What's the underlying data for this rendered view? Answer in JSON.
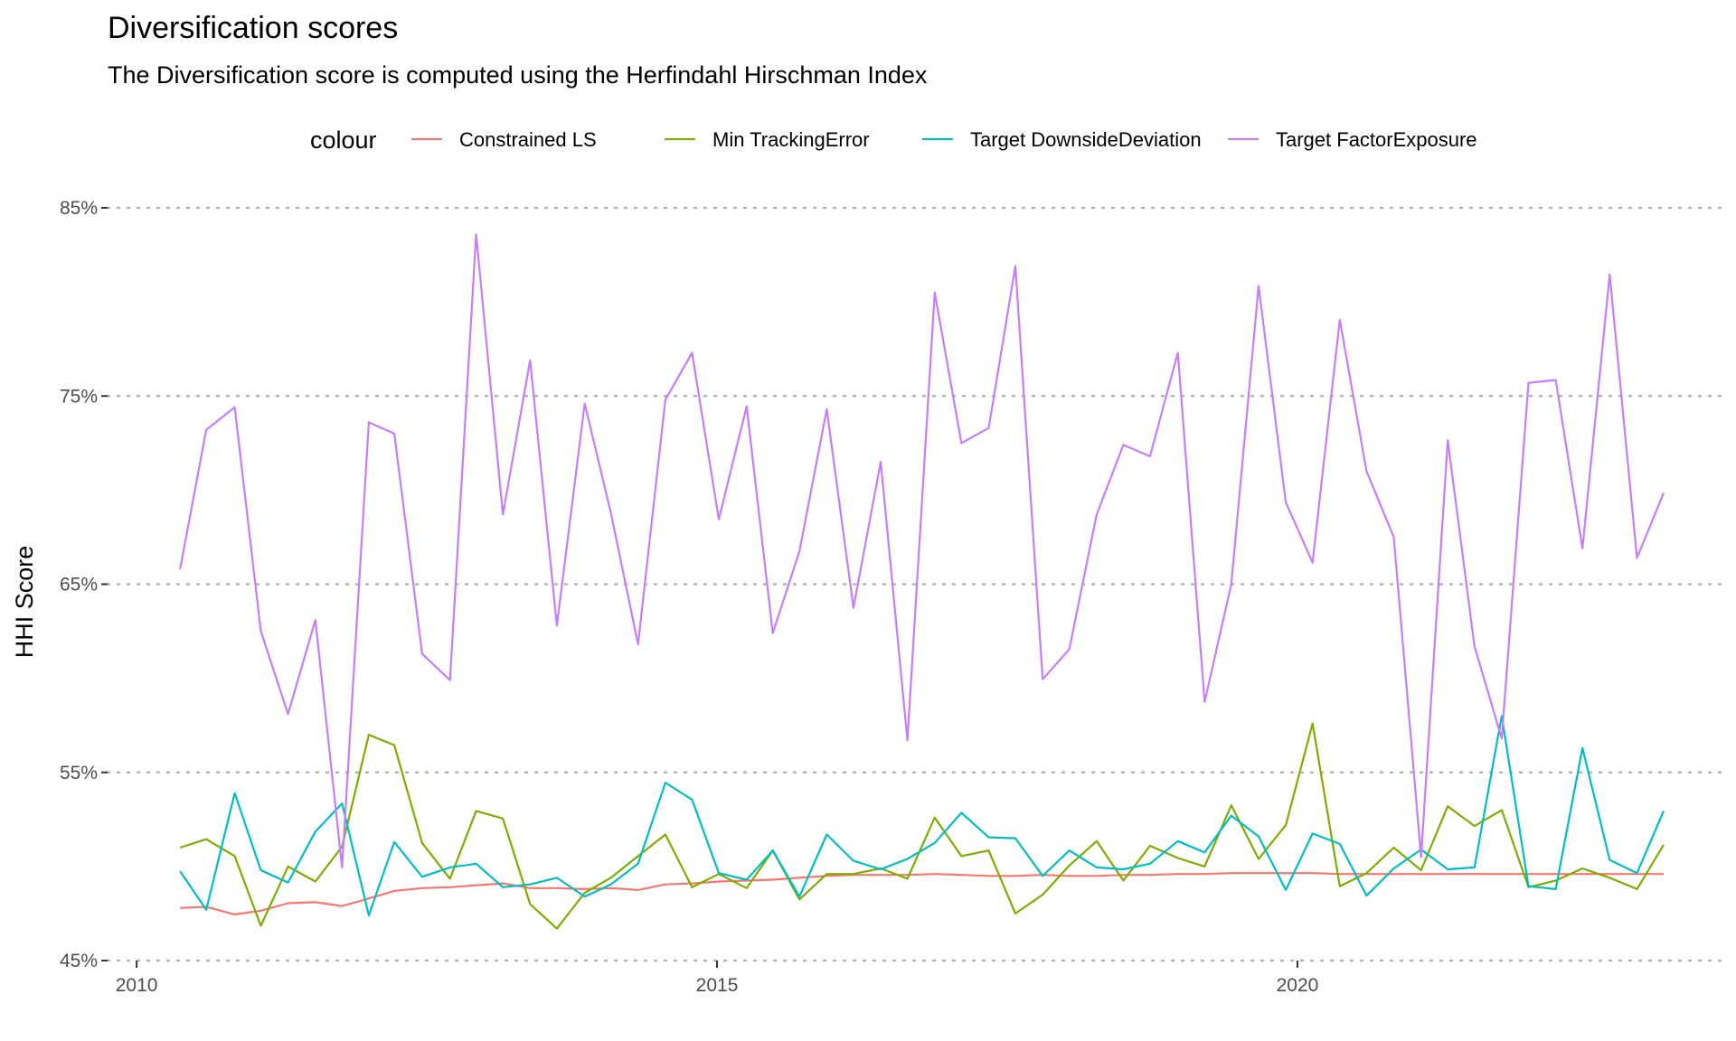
{
  "chart_data": {
    "type": "line",
    "title": "Diversification scores",
    "subtitle": "The Diversification score is computed using the Herfindahl Hirschman Index",
    "xlabel": "",
    "ylabel": "HHI Score",
    "legend_title": "colour",
    "legend_position": "top",
    "grid": "horizontal-dotted",
    "x_ticks": [
      "2010",
      "2015",
      "2020"
    ],
    "y_ticks": [
      "45%",
      "55%",
      "65%",
      "75%",
      "85%"
    ],
    "xlim": [
      2009.75,
      2023.7
    ],
    "ylim": [
      45,
      85
    ],
    "x": [
      2010.375,
      2010.6,
      2010.845,
      2011.07,
      2011.305,
      2011.54,
      2011.77,
      2012.0,
      2012.22,
      2012.46,
      2012.7,
      2012.925,
      2013.155,
      2013.39,
      2013.62,
      2013.86,
      2014.085,
      2014.32,
      2014.555,
      2014.785,
      2015.015,
      2015.255,
      2015.48,
      2015.71,
      2015.945,
      2016.175,
      2016.41,
      2016.64,
      2016.875,
      2017.105,
      2017.34,
      2017.57,
      2017.805,
      2018.035,
      2018.27,
      2018.5,
      2018.73,
      2018.97,
      2019.2,
      2019.43,
      2019.665,
      2019.9,
      2020.13,
      2020.365,
      2020.595,
      2020.83,
      2021.065,
      2021.295,
      2021.525,
      2021.76,
      2021.99,
      2022.225,
      2022.455,
      2022.69,
      2022.925,
      2023.155
    ],
    "series": [
      {
        "name": "Constrained LS",
        "color": "#F8766D",
        "values": [
          47.8,
          47.85,
          47.45,
          47.65,
          48.05,
          48.1,
          47.9,
          48.3,
          48.7,
          48.85,
          48.9,
          49.0,
          49.1,
          48.85,
          48.85,
          48.8,
          48.85,
          48.75,
          49.05,
          49.1,
          49.2,
          49.25,
          49.3,
          49.4,
          49.5,
          49.55,
          49.55,
          49.55,
          49.6,
          49.55,
          49.5,
          49.5,
          49.55,
          49.5,
          49.5,
          49.55,
          49.55,
          49.6,
          49.6,
          49.65,
          49.65,
          49.65,
          49.65,
          49.6,
          49.6,
          49.6,
          49.6,
          49.6,
          49.6,
          49.6,
          49.6,
          49.6,
          49.6,
          49.6,
          49.6,
          49.6
        ]
      },
      {
        "name": "Min TrackingError",
        "color": "#7CAE00",
        "values": [
          51.0,
          51.45,
          50.55,
          46.85,
          50.0,
          49.2,
          51.05,
          57.0,
          56.45,
          51.25,
          49.35,
          52.95,
          52.55,
          48.0,
          46.7,
          48.6,
          49.4,
          50.55,
          51.7,
          48.9,
          49.6,
          48.85,
          50.85,
          48.25,
          49.6,
          49.6,
          49.9,
          49.35,
          52.6,
          50.55,
          50.85,
          47.5,
          48.5,
          50.05,
          51.35,
          49.25,
          51.1,
          50.45,
          50.0,
          53.25,
          50.4,
          52.2,
          57.6,
          48.95,
          49.65,
          51.0,
          49.8,
          53.2,
          52.15,
          53.0,
          48.9,
          49.25,
          49.9,
          49.4,
          48.8,
          51.15
        ]
      },
      {
        "name": "Target DownsideDeviation",
        "color": "#00BFC4",
        "values": [
          49.75,
          47.7,
          53.9,
          49.8,
          49.15,
          51.85,
          53.35,
          47.4,
          51.3,
          49.45,
          49.95,
          50.15,
          48.9,
          49.05,
          49.4,
          48.4,
          49.05,
          50.15,
          54.45,
          53.55,
          49.65,
          49.3,
          50.85,
          48.4,
          51.7,
          50.3,
          49.85,
          50.4,
          51.25,
          52.85,
          51.55,
          51.5,
          49.5,
          50.85,
          49.95,
          49.85,
          50.15,
          51.35,
          50.75,
          52.7,
          51.6,
          48.75,
          51.75,
          51.2,
          48.45,
          49.9,
          50.9,
          49.85,
          49.95,
          58.0,
          48.95,
          48.8,
          56.3,
          50.35,
          49.65,
          52.95
        ]
      },
      {
        "name": "Target FactorExposure",
        "color": "#C77CFF",
        "values": [
          65.8,
          73.2,
          74.4,
          62.5,
          58.1,
          63.1,
          49.95,
          73.6,
          73.0,
          61.3,
          59.9,
          83.6,
          68.7,
          76.9,
          62.8,
          74.6,
          68.8,
          61.8,
          74.8,
          77.3,
          68.45,
          74.45,
          62.4,
          66.75,
          74.3,
          63.75,
          71.5,
          56.7,
          80.5,
          72.5,
          73.3,
          81.9,
          59.95,
          61.55,
          68.7,
          72.4,
          71.8,
          77.3,
          58.75,
          65.0,
          80.85,
          69.35,
          66.15,
          79.05,
          71.0,
          67.5,
          50.5,
          72.65,
          61.7,
          56.8,
          75.7,
          75.85,
          66.9,
          81.45,
          66.4,
          69.85
        ]
      }
    ]
  }
}
